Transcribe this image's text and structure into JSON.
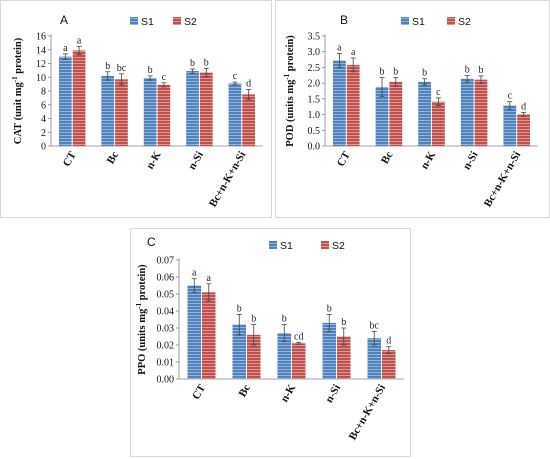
{
  "chart_data": [
    {
      "type": "bar",
      "panel_label": "A",
      "ylabel_pre": "CAT (unit mg",
      "ylabel_sup": "-1",
      "ylabel_post": " protein)",
      "categories": [
        "CT",
        "Bc",
        "n-K",
        "n-Si",
        "Bc+n-K+n-Si"
      ],
      "ylim": [
        0,
        16
      ],
      "yticks": [
        "0",
        "2",
        "4",
        "6",
        "8",
        "10",
        "12",
        "14",
        "16"
      ],
      "series": [
        {
          "name": "S1",
          "color": "#4f81bd",
          "values": [
            13.0,
            10.2,
            9.9,
            10.9,
            9.1
          ],
          "errors": [
            0.4,
            0.6,
            0.3,
            0.3,
            0.2
          ],
          "letters": [
            "a",
            "b",
            "b",
            "b",
            "c"
          ]
        },
        {
          "name": "S2",
          "color": "#c0504d",
          "values": [
            13.9,
            9.7,
            8.9,
            10.7,
            7.5
          ],
          "errors": [
            0.6,
            0.8,
            0.3,
            0.6,
            0.7
          ],
          "letters": [
            "a",
            "bc",
            "c",
            "b",
            "d"
          ]
        }
      ]
    },
    {
      "type": "bar",
      "panel_label": "B",
      "ylabel_pre": "POD (units mg",
      "ylabel_sup": "-1",
      "ylabel_post": " protein)",
      "categories": [
        "CT",
        "Bc",
        "n-K",
        "n-Si",
        "Bc+n-K+n-Si"
      ],
      "ylim": [
        0,
        3.5
      ],
      "yticks": [
        "0.0",
        "0.5",
        "1.0",
        "1.5",
        "2.0",
        "2.5",
        "3.0",
        "3.5"
      ],
      "series": [
        {
          "name": "S1",
          "color": "#4f81bd",
          "values": [
            2.72,
            1.88,
            2.04,
            2.14,
            1.29
          ],
          "errors": [
            0.22,
            0.3,
            0.1,
            0.1,
            0.12
          ],
          "letters": [
            "a",
            "b",
            "b",
            "b",
            "c"
          ]
        },
        {
          "name": "S2",
          "color": "#c0504d",
          "values": [
            2.58,
            2.04,
            1.41,
            2.11,
            1.01
          ],
          "errors": [
            0.22,
            0.14,
            0.12,
            0.12,
            0.06
          ],
          "letters": [
            "a",
            "b",
            "c",
            "b",
            "d"
          ]
        }
      ]
    },
    {
      "type": "bar",
      "panel_label": "C",
      "ylabel_pre": "PPO (units mg",
      "ylabel_sup": "-1",
      "ylabel_post": " protein)",
      "categories": [
        "CT",
        "Bc",
        "n-K",
        "n-Si",
        "Bc+n-K+n-Si"
      ],
      "ylim": [
        0,
        0.07
      ],
      "yticks": [
        "0.00",
        "0.01",
        "0.02",
        "0.03",
        "0.04",
        "0.05",
        "0.06",
        "0.07"
      ],
      "series": [
        {
          "name": "S1",
          "color": "#4f81bd",
          "values": [
            0.055,
            0.032,
            0.027,
            0.033,
            0.024
          ],
          "errors": [
            0.004,
            0.006,
            0.005,
            0.005,
            0.004
          ],
          "letters": [
            "a",
            "b",
            "b",
            "b",
            "bc"
          ]
        },
        {
          "name": "S2",
          "color": "#c0504d",
          "values": [
            0.051,
            0.026,
            0.021,
            0.025,
            0.017
          ],
          "errors": [
            0.005,
            0.006,
            0.0005,
            0.005,
            0.002
          ],
          "letters": [
            "a",
            "b",
            "cd",
            "b",
            "d"
          ]
        }
      ]
    }
  ]
}
